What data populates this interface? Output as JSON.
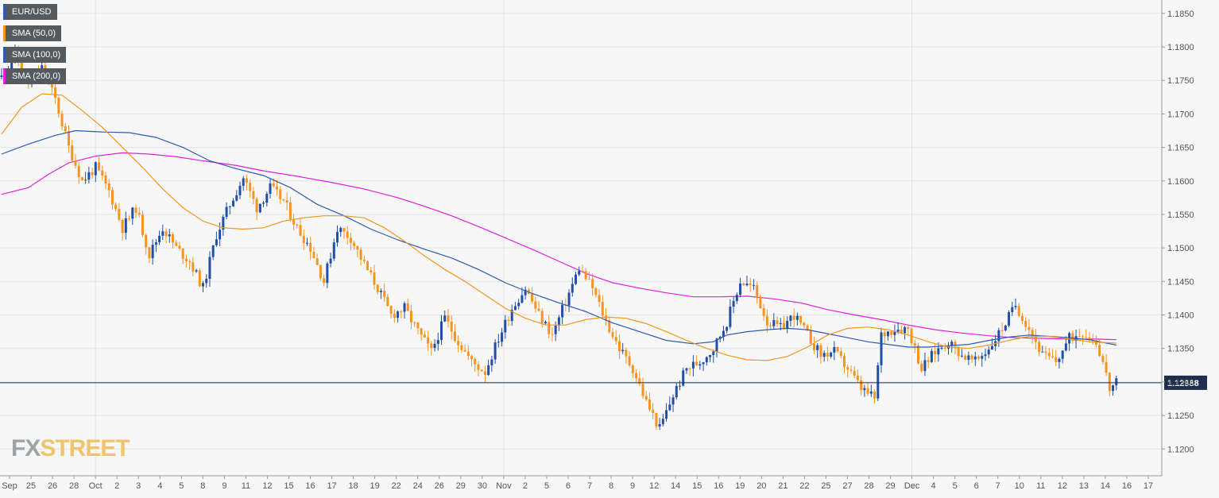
{
  "legend": [
    {
      "label": "EUR/USD",
      "color": "#2a5cb0"
    },
    {
      "label": "SMA (50,0)",
      "color": "#f5951f"
    },
    {
      "label": "SMA (100,0)",
      "color": "#2a5cb0"
    },
    {
      "label": "SMA (200,0)",
      "color": "#e11ee1"
    }
  ],
  "logo": {
    "part1": "FX",
    "part2": "STREET"
  },
  "colors": {
    "bull": "#1f4fa8",
    "bear": "#f5951f",
    "sma50": "#f5951f",
    "sma100": "#2a5cb0",
    "sma200": "#e11ee1",
    "priceLine": "#1c2f4e",
    "priceTag": "#1c2f4e",
    "grid": "#e4e4e4"
  },
  "chart_data": {
    "type": "candlestick",
    "symbol": "EUR/USD",
    "ylim": [
      1.116,
      1.187
    ],
    "y_ticks": [
      "1.1850",
      "1.1800",
      "1.1750",
      "1.1700",
      "1.1650",
      "1.1600",
      "1.1550",
      "1.1500",
      "1.1450",
      "1.1400",
      "1.1350",
      "1.1300",
      "1.1250",
      "1.1200"
    ],
    "x_ticks": [
      "Sep",
      "25",
      "26",
      "28",
      "Oct",
      "2",
      "3",
      "4",
      "5",
      "8",
      "9",
      "11",
      "12",
      "15",
      "16",
      "17",
      "18",
      "19",
      "22",
      "24",
      "26",
      "29",
      "30",
      "Nov",
      "2",
      "5",
      "6",
      "7",
      "8",
      "9",
      "12",
      "14",
      "15",
      "16",
      "19",
      "20",
      "21",
      "22",
      "25",
      "27",
      "28",
      "29",
      "Dec",
      "4",
      "5",
      "6",
      "7",
      "10",
      "11",
      "12",
      "13",
      "14",
      "16",
      "17"
    ],
    "current_price": "1.12988",
    "close_path": [
      [
        0,
        1.1755
      ],
      [
        4,
        1.179
      ],
      [
        8,
        1.1745
      ],
      [
        12,
        1.1768
      ],
      [
        16,
        1.1722
      ],
      [
        20,
        1.165
      ],
      [
        24,
        1.16
      ],
      [
        28,
        1.162
      ],
      [
        32,
        1.1585
      ],
      [
        36,
        1.153
      ],
      [
        40,
        1.156
      ],
      [
        44,
        1.149
      ],
      [
        48,
        1.153
      ],
      [
        52,
        1.15
      ],
      [
        56,
        1.148
      ],
      [
        60,
        1.144
      ],
      [
        64,
        1.152
      ],
      [
        68,
        1.1565
      ],
      [
        72,
        1.1605
      ],
      [
        76,
        1.156
      ],
      [
        80,
        1.159
      ],
      [
        84,
        1.157
      ],
      [
        88,
        1.153
      ],
      [
        92,
        1.15
      ],
      [
        96,
        1.145
      ],
      [
        100,
        1.153
      ],
      [
        104,
        1.1515
      ],
      [
        108,
        1.1475
      ],
      [
        112,
        1.144
      ],
      [
        116,
        1.14
      ],
      [
        120,
        1.141
      ],
      [
        124,
        1.1375
      ],
      [
        128,
        1.1345
      ],
      [
        132,
        1.1395
      ],
      [
        136,
        1.136
      ],
      [
        140,
        1.133
      ],
      [
        144,
        1.1315
      ],
      [
        148,
        1.1365
      ],
      [
        152,
        1.141
      ],
      [
        156,
        1.144
      ],
      [
        160,
        1.14
      ],
      [
        164,
        1.137
      ],
      [
        168,
        1.142
      ],
      [
        172,
        1.147
      ],
      [
        176,
        1.144
      ],
      [
        180,
        1.139
      ],
      [
        184,
        1.135
      ],
      [
        188,
        1.132
      ],
      [
        192,
        1.127
      ],
      [
        196,
        1.123
      ],
      [
        200,
        1.128
      ],
      [
        204,
        1.132
      ],
      [
        208,
        1.133
      ],
      [
        212,
        1.135
      ],
      [
        216,
        1.139
      ],
      [
        220,
        1.145
      ],
      [
        224,
        1.144
      ],
      [
        228,
        1.139
      ],
      [
        232,
        1.138
      ],
      [
        236,
        1.14
      ],
      [
        240,
        1.137
      ],
      [
        244,
        1.134
      ],
      [
        248,
        1.1345
      ],
      [
        252,
        1.132
      ],
      [
        256,
        1.129
      ],
      [
        260,
        1.1275
      ],
      [
        262,
        1.137
      ],
      [
        266,
        1.138
      ],
      [
        270,
        1.138
      ],
      [
        274,
        1.132
      ],
      [
        278,
        1.1345
      ],
      [
        282,
        1.136
      ],
      [
        286,
        1.134
      ],
      [
        290,
        1.133
      ],
      [
        294,
        1.135
      ],
      [
        298,
        1.138
      ],
      [
        302,
        1.1415
      ],
      [
        306,
        1.138
      ],
      [
        310,
        1.134
      ],
      [
        314,
        1.133
      ],
      [
        318,
        1.1365
      ],
      [
        322,
        1.1375
      ],
      [
        326,
        1.136
      ],
      [
        328,
        1.133
      ],
      [
        330,
        1.129
      ],
      [
        332,
        1.1298
      ]
    ],
    "sma50": [
      [
        0,
        1.167
      ],
      [
        6,
        1.171
      ],
      [
        12,
        1.173
      ],
      [
        18,
        1.1728
      ],
      [
        24,
        1.1705
      ],
      [
        30,
        1.168
      ],
      [
        36,
        1.165
      ],
      [
        42,
        1.162
      ],
      [
        48,
        1.1588
      ],
      [
        54,
        1.156
      ],
      [
        60,
        1.154
      ],
      [
        66,
        1.153
      ],
      [
        72,
        1.1528
      ],
      [
        78,
        1.153
      ],
      [
        84,
        1.154
      ],
      [
        90,
        1.1545
      ],
      [
        96,
        1.1548
      ],
      [
        102,
        1.1548
      ],
      [
        108,
        1.1545
      ],
      [
        114,
        1.153
      ],
      [
        120,
        1.151
      ],
      [
        126,
        1.1488
      ],
      [
        132,
        1.1468
      ],
      [
        138,
        1.145
      ],
      [
        144,
        1.143
      ],
      [
        150,
        1.141
      ],
      [
        156,
        1.1395
      ],
      [
        162,
        1.1385
      ],
      [
        168,
        1.1385
      ],
      [
        174,
        1.1393
      ],
      [
        180,
        1.1397
      ],
      [
        186,
        1.1395
      ],
      [
        192,
        1.1387
      ],
      [
        198,
        1.1375
      ],
      [
        204,
        1.1362
      ],
      [
        210,
        1.135
      ],
      [
        216,
        1.134
      ],
      [
        222,
        1.1333
      ],
      [
        228,
        1.1332
      ],
      [
        234,
        1.1338
      ],
      [
        240,
        1.1352
      ],
      [
        246,
        1.137
      ],
      [
        252,
        1.138
      ],
      [
        258,
        1.1382
      ],
      [
        264,
        1.1378
      ],
      [
        270,
        1.137
      ],
      [
        276,
        1.136
      ],
      [
        282,
        1.1352
      ],
      [
        288,
        1.135
      ],
      [
        294,
        1.1355
      ],
      [
        300,
        1.1362
      ],
      [
        306,
        1.1368
      ],
      [
        312,
        1.1368
      ],
      [
        318,
        1.1364
      ],
      [
        324,
        1.136
      ],
      [
        332,
        1.1358
      ]
    ],
    "sma100": [
      [
        0,
        1.164
      ],
      [
        8,
        1.1655
      ],
      [
        16,
        1.1668
      ],
      [
        22,
        1.1675
      ],
      [
        30,
        1.1673
      ],
      [
        38,
        1.1672
      ],
      [
        46,
        1.1665
      ],
      [
        54,
        1.165
      ],
      [
        62,
        1.163
      ],
      [
        70,
        1.1618
      ],
      [
        78,
        1.1608
      ],
      [
        86,
        1.159
      ],
      [
        94,
        1.1565
      ],
      [
        102,
        1.1548
      ],
      [
        110,
        1.1528
      ],
      [
        118,
        1.1512
      ],
      [
        126,
        1.1498
      ],
      [
        134,
        1.1485
      ],
      [
        142,
        1.1468
      ],
      [
        150,
        1.1448
      ],
      [
        158,
        1.1432
      ],
      [
        166,
        1.1418
      ],
      [
        174,
        1.1405
      ],
      [
        182,
        1.1388
      ],
      [
        190,
        1.1375
      ],
      [
        198,
        1.1362
      ],
      [
        206,
        1.1357
      ],
      [
        212,
        1.136
      ],
      [
        216,
        1.137
      ],
      [
        222,
        1.1375
      ],
      [
        228,
        1.1378
      ],
      [
        234,
        1.138
      ],
      [
        240,
        1.1378
      ],
      [
        246,
        1.1372
      ],
      [
        252,
        1.1366
      ],
      [
        258,
        1.136
      ],
      [
        264,
        1.1356
      ],
      [
        270,
        1.1352
      ],
      [
        276,
        1.1352
      ],
      [
        282,
        1.1354
      ],
      [
        288,
        1.1356
      ],
      [
        294,
        1.1362
      ],
      [
        300,
        1.1367
      ],
      [
        306,
        1.137
      ],
      [
        312,
        1.1368
      ],
      [
        318,
        1.1366
      ],
      [
        324,
        1.1363
      ],
      [
        332,
        1.1355
      ]
    ],
    "sma200": [
      [
        0,
        1.158
      ],
      [
        8,
        1.159
      ],
      [
        14,
        1.161
      ],
      [
        20,
        1.1627
      ],
      [
        28,
        1.1637
      ],
      [
        36,
        1.1642
      ],
      [
        44,
        1.164
      ],
      [
        52,
        1.1636
      ],
      [
        60,
        1.163
      ],
      [
        70,
        1.1623
      ],
      [
        78,
        1.1615
      ],
      [
        88,
        1.1607
      ],
      [
        98,
        1.1598
      ],
      [
        108,
        1.1588
      ],
      [
        118,
        1.1575
      ],
      [
        126,
        1.1562
      ],
      [
        134,
        1.1548
      ],
      [
        142,
        1.1532
      ],
      [
        150,
        1.1515
      ],
      [
        158,
        1.1498
      ],
      [
        166,
        1.148
      ],
      [
        174,
        1.1462
      ],
      [
        182,
        1.1448
      ],
      [
        190,
        1.144
      ],
      [
        198,
        1.1433
      ],
      [
        206,
        1.1427
      ],
      [
        214,
        1.1427
      ],
      [
        222,
        1.1428
      ],
      [
        230,
        1.1424
      ],
      [
        238,
        1.1418
      ],
      [
        246,
        1.1408
      ],
      [
        254,
        1.14
      ],
      [
        262,
        1.1393
      ],
      [
        270,
        1.1385
      ],
      [
        278,
        1.1378
      ],
      [
        286,
        1.1373
      ],
      [
        294,
        1.1369
      ],
      [
        302,
        1.1366
      ],
      [
        310,
        1.1365
      ],
      [
        318,
        1.1364
      ],
      [
        326,
        1.1364
      ],
      [
        332,
        1.1363
      ]
    ]
  }
}
